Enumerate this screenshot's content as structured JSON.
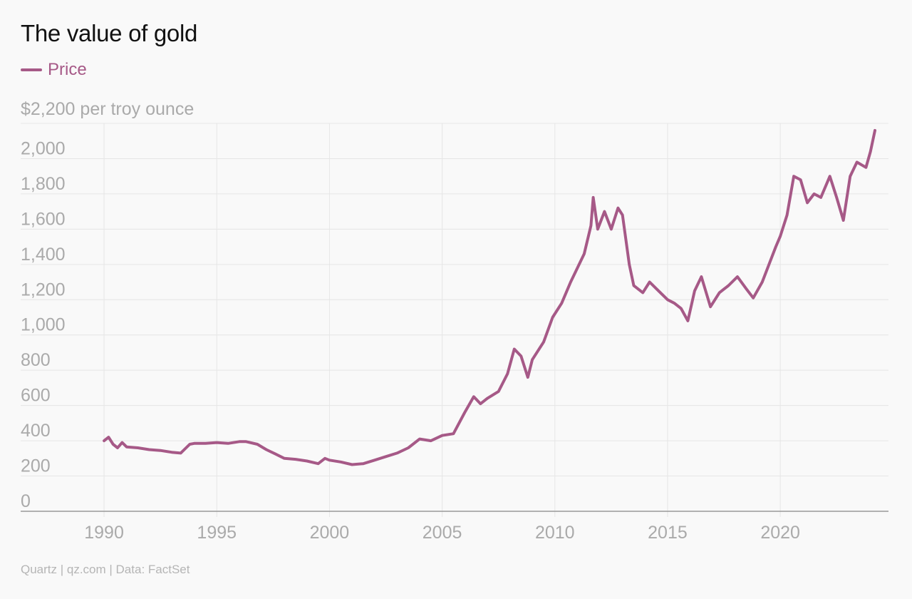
{
  "header": {
    "title": "The value of gold"
  },
  "legend": {
    "label": "Price"
  },
  "source": "Quartz | qz.com | Data: FactSet",
  "colors": {
    "series": "#a65987",
    "grid": "#e6e6e6",
    "axis": "#999999",
    "tick": "#aaaaaa"
  },
  "chart_data": {
    "type": "line",
    "title": "The value of gold",
    "ylabel": "$2,200 per troy ounce",
    "xlabel": "",
    "ylim": [
      0,
      2200
    ],
    "xlim": [
      1986.3,
      2024.8
    ],
    "grid": true,
    "legend_position": "top-left",
    "x_ticks": [
      1990,
      1995,
      2000,
      2005,
      2010,
      2015,
      2020
    ],
    "y_ticks": [
      0,
      200,
      400,
      600,
      800,
      1000,
      1200,
      1400,
      1600,
      1800,
      2000
    ],
    "y_tick_labels": [
      "0",
      "200",
      "400",
      "600",
      "800",
      "1,000",
      "1,200",
      "1,400",
      "1,600",
      "1,800",
      "2,000"
    ],
    "series": [
      {
        "name": "Price",
        "x": [
          1990.0,
          1990.2,
          1990.4,
          1990.6,
          1990.8,
          1991.0,
          1991.5,
          1992.0,
          1992.5,
          1993.0,
          1993.4,
          1993.8,
          1994.0,
          1994.5,
          1995.0,
          1995.5,
          1996.0,
          1996.3,
          1996.8,
          1997.2,
          1997.6,
          1998.0,
          1998.5,
          1999.0,
          1999.5,
          1999.8,
          2000.0,
          2000.5,
          2001.0,
          2001.5,
          2002.0,
          2002.5,
          2003.0,
          2003.5,
          2004.0,
          2004.5,
          2005.0,
          2005.5,
          2006.0,
          2006.4,
          2006.7,
          2007.0,
          2007.5,
          2007.9,
          2008.2,
          2008.5,
          2008.8,
          2009.0,
          2009.5,
          2009.9,
          2010.3,
          2010.7,
          2011.0,
          2011.3,
          2011.6,
          2011.7,
          2011.9,
          2012.2,
          2012.5,
          2012.8,
          2013.0,
          2013.3,
          2013.5,
          2013.9,
          2014.2,
          2014.6,
          2015.0,
          2015.3,
          2015.6,
          2015.9,
          2016.2,
          2016.5,
          2016.9,
          2017.3,
          2017.7,
          2018.1,
          2018.5,
          2018.8,
          2019.2,
          2019.5,
          2019.8,
          2020.0,
          2020.3,
          2020.6,
          2020.9,
          2021.2,
          2021.5,
          2021.8,
          2022.2,
          2022.5,
          2022.8,
          2023.1,
          2023.4,
          2023.8,
          2024.0,
          2024.2
        ],
        "values": [
          400,
          420,
          380,
          360,
          390,
          365,
          360,
          350,
          345,
          335,
          330,
          380,
          385,
          385,
          390,
          385,
          395,
          395,
          380,
          350,
          325,
          300,
          295,
          285,
          270,
          300,
          290,
          280,
          265,
          270,
          290,
          310,
          330,
          360,
          410,
          400,
          430,
          440,
          560,
          650,
          610,
          640,
          680,
          780,
          920,
          880,
          760,
          860,
          960,
          1100,
          1180,
          1300,
          1380,
          1460,
          1620,
          1780,
          1600,
          1700,
          1600,
          1720,
          1680,
          1400,
          1280,
          1240,
          1300,
          1250,
          1200,
          1180,
          1150,
          1080,
          1250,
          1330,
          1160,
          1240,
          1280,
          1330,
          1260,
          1210,
          1300,
          1400,
          1500,
          1560,
          1680,
          1900,
          1880,
          1750,
          1800,
          1780,
          1900,
          1780,
          1650,
          1900,
          1980,
          1950,
          2040,
          2160
        ]
      }
    ]
  }
}
